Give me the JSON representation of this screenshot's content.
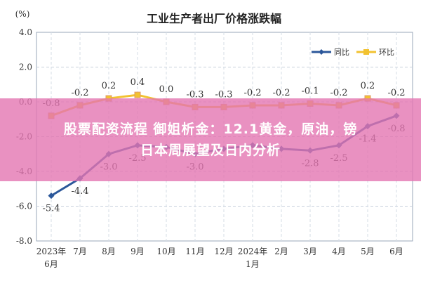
{
  "overlay": {
    "line1": "股票配资流程 御姐析金：12.1黄金，原油，镑",
    "line2": "日本周展望及日内分析"
  },
  "chart_data": {
    "type": "line",
    "title": "工业生产者出厂价格涨跌幅",
    "y_unit": "(%)",
    "ylim": [
      -8.0,
      4.0
    ],
    "y_ticks": [
      "4.0",
      "2.0",
      "0.0",
      "-2.0",
      "-4.0",
      "-6.0",
      "-8.0"
    ],
    "categories": [
      [
        "2023年",
        "6月"
      ],
      [
        "7月"
      ],
      [
        "8月"
      ],
      [
        "9月"
      ],
      [
        "10月"
      ],
      [
        "11月"
      ],
      [
        "12月"
      ],
      [
        "2024年",
        "1月"
      ],
      [
        "2月"
      ],
      [
        "3月"
      ],
      [
        "4月"
      ],
      [
        "5月"
      ],
      [
        "6月"
      ]
    ],
    "grid": true,
    "legend_position": "top-right",
    "series": [
      {
        "name": "同比",
        "color": "#2b579a",
        "values": [
          -5.4,
          -4.4,
          -3.0,
          -2.5,
          -2.6,
          -3.0,
          -2.7,
          -2.5,
          -2.7,
          -2.8,
          -2.5,
          -1.4,
          -0.8
        ],
        "labels": [
          "-5.4",
          "-4.4",
          "-3.0",
          "-2.5",
          "",
          "-3.0",
          "",
          "",
          "",
          "-2.8",
          "-2.5",
          "-1.4",
          "-0.8"
        ]
      },
      {
        "name": "环比",
        "color": "#f2c230",
        "values": [
          -0.8,
          -0.2,
          0.2,
          0.4,
          0.0,
          -0.3,
          -0.3,
          -0.2,
          -0.2,
          -0.1,
          -0.2,
          0.2,
          -0.2
        ],
        "labels": [
          "-0.8",
          "-0.2",
          "0.2",
          "0.4",
          "0.0",
          "-0.3",
          "-0.3",
          "-0.2",
          "-0.2",
          "-0.1",
          "-0.2",
          "0.2",
          "-0.2"
        ]
      }
    ]
  }
}
